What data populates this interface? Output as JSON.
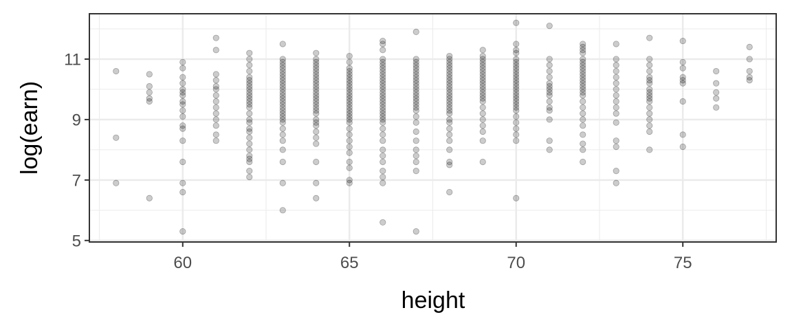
{
  "chart_data": {
    "type": "scatter",
    "xlabel": "height",
    "ylabel": "log(earn)",
    "xlim": [
      57.2,
      77.8
    ],
    "ylim": [
      4.95,
      12.5
    ],
    "x_ticks": [
      60,
      65,
      70,
      75
    ],
    "y_ticks": [
      5,
      7,
      9,
      11
    ],
    "x_tick_labels": [
      "60",
      "65",
      "70",
      "75"
    ],
    "y_tick_labels": [
      "5",
      "7",
      "9",
      "11"
    ],
    "grid": true,
    "legend": "none",
    "point_color": "#000000",
    "point_alpha": 0.2,
    "points": [
      [
        58,
        10.6
      ],
      [
        58,
        8.4
      ],
      [
        58,
        6.9
      ],
      [
        59,
        10.5
      ],
      [
        59,
        10.1
      ],
      [
        59,
        9.9
      ],
      [
        59,
        9.7
      ],
      [
        59,
        9.6
      ],
      [
        59,
        6.4
      ],
      [
        60,
        10.9
      ],
      [
        60,
        10.7
      ],
      [
        60,
        10.4
      ],
      [
        60,
        10.2
      ],
      [
        60,
        10.0
      ],
      [
        60,
        9.9
      ],
      [
        60,
        9.8
      ],
      [
        60,
        9.6
      ],
      [
        60,
        9.5
      ],
      [
        60,
        9.3
      ],
      [
        60,
        9.1
      ],
      [
        60,
        8.8
      ],
      [
        60,
        8.7
      ],
      [
        60,
        8.3
      ],
      [
        60,
        7.6
      ],
      [
        60,
        6.9
      ],
      [
        60,
        6.6
      ],
      [
        60,
        5.3
      ],
      [
        61,
        11.7
      ],
      [
        61,
        11.3
      ],
      [
        61,
        10.5
      ],
      [
        61,
        10.3
      ],
      [
        61,
        10.1
      ],
      [
        61,
        10.0
      ],
      [
        61,
        9.8
      ],
      [
        61,
        9.6
      ],
      [
        61,
        9.4
      ],
      [
        61,
        9.2
      ],
      [
        61,
        9.0
      ],
      [
        61,
        8.8
      ],
      [
        61,
        8.5
      ],
      [
        61,
        8.3
      ],
      [
        62,
        11.2
      ],
      [
        62,
        11.0
      ],
      [
        62,
        10.8
      ],
      [
        62,
        10.6
      ],
      [
        62,
        10.4
      ],
      [
        62,
        10.3
      ],
      [
        62,
        10.2
      ],
      [
        62,
        10.1
      ],
      [
        62,
        10.0
      ],
      [
        62,
        9.9
      ],
      [
        62,
        9.8
      ],
      [
        62,
        9.7
      ],
      [
        62,
        9.6
      ],
      [
        62,
        9.5
      ],
      [
        62,
        9.4
      ],
      [
        62,
        9.2
      ],
      [
        62,
        9.0
      ],
      [
        62,
        8.9
      ],
      [
        62,
        8.7
      ],
      [
        62,
        8.6
      ],
      [
        62,
        8.4
      ],
      [
        62,
        8.2
      ],
      [
        62,
        8.0
      ],
      [
        62,
        7.8
      ],
      [
        62,
        7.7
      ],
      [
        62,
        7.6
      ],
      [
        62,
        7.3
      ],
      [
        62,
        7.1
      ],
      [
        63,
        11.5
      ],
      [
        63,
        11.0
      ],
      [
        63,
        10.9
      ],
      [
        63,
        10.8
      ],
      [
        63,
        10.7
      ],
      [
        63,
        10.6
      ],
      [
        63,
        10.5
      ],
      [
        63,
        10.4
      ],
      [
        63,
        10.3
      ],
      [
        63,
        10.2
      ],
      [
        63,
        10.1
      ],
      [
        63,
        10.0
      ],
      [
        63,
        9.9
      ],
      [
        63,
        9.8
      ],
      [
        63,
        9.7
      ],
      [
        63,
        9.6
      ],
      [
        63,
        9.5
      ],
      [
        63,
        9.4
      ],
      [
        63,
        9.3
      ],
      [
        63,
        9.2
      ],
      [
        63,
        9.1
      ],
      [
        63,
        9.0
      ],
      [
        63,
        8.9
      ],
      [
        63,
        8.7
      ],
      [
        63,
        8.5
      ],
      [
        63,
        8.3
      ],
      [
        63,
        8.0
      ],
      [
        63,
        7.6
      ],
      [
        63,
        6.9
      ],
      [
        63,
        6.0
      ],
      [
        64,
        11.2
      ],
      [
        64,
        11.0
      ],
      [
        64,
        10.9
      ],
      [
        64,
        10.8
      ],
      [
        64,
        10.7
      ],
      [
        64,
        10.6
      ],
      [
        64,
        10.5
      ],
      [
        64,
        10.4
      ],
      [
        64,
        10.3
      ],
      [
        64,
        10.2
      ],
      [
        64,
        10.1
      ],
      [
        64,
        10.0
      ],
      [
        64,
        9.9
      ],
      [
        64,
        9.8
      ],
      [
        64,
        9.7
      ],
      [
        64,
        9.6
      ],
      [
        64,
        9.5
      ],
      [
        64,
        9.4
      ],
      [
        64,
        9.3
      ],
      [
        64,
        9.2
      ],
      [
        64,
        9.0
      ],
      [
        64,
        8.9
      ],
      [
        64,
        8.8
      ],
      [
        64,
        8.6
      ],
      [
        64,
        8.4
      ],
      [
        64,
        8.2
      ],
      [
        64,
        7.6
      ],
      [
        64,
        6.9
      ],
      [
        64,
        6.4
      ],
      [
        65,
        11.1
      ],
      [
        65,
        10.9
      ],
      [
        65,
        10.7
      ],
      [
        65,
        10.6
      ],
      [
        65,
        10.5
      ],
      [
        65,
        10.4
      ],
      [
        65,
        10.3
      ],
      [
        65,
        10.2
      ],
      [
        65,
        10.1
      ],
      [
        65,
        10.0
      ],
      [
        65,
        9.9
      ],
      [
        65,
        9.8
      ],
      [
        65,
        9.7
      ],
      [
        65,
        9.6
      ],
      [
        65,
        9.5
      ],
      [
        65,
        9.4
      ],
      [
        65,
        9.3
      ],
      [
        65,
        9.2
      ],
      [
        65,
        9.1
      ],
      [
        65,
        9.0
      ],
      [
        65,
        8.9
      ],
      [
        65,
        8.7
      ],
      [
        65,
        8.5
      ],
      [
        65,
        8.3
      ],
      [
        65,
        8.1
      ],
      [
        65,
        7.9
      ],
      [
        65,
        7.6
      ],
      [
        65,
        7.4
      ],
      [
        65,
        7.0
      ],
      [
        65,
        6.9
      ],
      [
        66,
        11.6
      ],
      [
        66,
        11.5
      ],
      [
        66,
        11.3
      ],
      [
        66,
        11.0
      ],
      [
        66,
        10.9
      ],
      [
        66,
        10.8
      ],
      [
        66,
        10.7
      ],
      [
        66,
        10.6
      ],
      [
        66,
        10.5
      ],
      [
        66,
        10.4
      ],
      [
        66,
        10.3
      ],
      [
        66,
        10.2
      ],
      [
        66,
        10.1
      ],
      [
        66,
        10.0
      ],
      [
        66,
        9.9
      ],
      [
        66,
        9.8
      ],
      [
        66,
        9.7
      ],
      [
        66,
        9.6
      ],
      [
        66,
        9.5
      ],
      [
        66,
        9.4
      ],
      [
        66,
        9.3
      ],
      [
        66,
        9.2
      ],
      [
        66,
        9.1
      ],
      [
        66,
        9.0
      ],
      [
        66,
        8.9
      ],
      [
        66,
        8.7
      ],
      [
        66,
        8.5
      ],
      [
        66,
        8.3
      ],
      [
        66,
        8.0
      ],
      [
        66,
        7.8
      ],
      [
        66,
        7.6
      ],
      [
        66,
        7.3
      ],
      [
        66,
        7.1
      ],
      [
        66,
        6.9
      ],
      [
        66,
        5.6
      ],
      [
        67,
        11.9
      ],
      [
        67,
        11.0
      ],
      [
        67,
        10.9
      ],
      [
        67,
        10.8
      ],
      [
        67,
        10.7
      ],
      [
        67,
        10.6
      ],
      [
        67,
        10.5
      ],
      [
        67,
        10.4
      ],
      [
        67,
        10.3
      ],
      [
        67,
        10.2
      ],
      [
        67,
        10.1
      ],
      [
        67,
        10.0
      ],
      [
        67,
        9.9
      ],
      [
        67,
        9.8
      ],
      [
        67,
        9.7
      ],
      [
        67,
        9.6
      ],
      [
        67,
        9.5
      ],
      [
        67,
        9.4
      ],
      [
        67,
        9.3
      ],
      [
        67,
        9.1
      ],
      [
        67,
        8.9
      ],
      [
        67,
        8.6
      ],
      [
        67,
        8.3
      ],
      [
        67,
        8.0
      ],
      [
        67,
        7.8
      ],
      [
        67,
        7.6
      ],
      [
        67,
        7.3
      ],
      [
        67,
        5.3
      ],
      [
        68,
        11.1
      ],
      [
        68,
        11.0
      ],
      [
        68,
        10.9
      ],
      [
        68,
        10.8
      ],
      [
        68,
        10.7
      ],
      [
        68,
        10.6
      ],
      [
        68,
        10.5
      ],
      [
        68,
        10.4
      ],
      [
        68,
        10.3
      ],
      [
        68,
        10.2
      ],
      [
        68,
        10.1
      ],
      [
        68,
        10.0
      ],
      [
        68,
        9.9
      ],
      [
        68,
        9.8
      ],
      [
        68,
        9.7
      ],
      [
        68,
        9.6
      ],
      [
        68,
        9.5
      ],
      [
        68,
        9.4
      ],
      [
        68,
        9.3
      ],
      [
        68,
        9.2
      ],
      [
        68,
        9.0
      ],
      [
        68,
        8.9
      ],
      [
        68,
        8.7
      ],
      [
        68,
        8.5
      ],
      [
        68,
        8.3
      ],
      [
        68,
        8.0
      ],
      [
        68,
        7.6
      ],
      [
        68,
        7.5
      ],
      [
        68,
        6.6
      ],
      [
        69,
        11.3
      ],
      [
        69,
        11.1
      ],
      [
        69,
        11.0
      ],
      [
        69,
        10.9
      ],
      [
        69,
        10.8
      ],
      [
        69,
        10.7
      ],
      [
        69,
        10.6
      ],
      [
        69,
        10.5
      ],
      [
        69,
        10.4
      ],
      [
        69,
        10.3
      ],
      [
        69,
        10.2
      ],
      [
        69,
        10.1
      ],
      [
        69,
        10.0
      ],
      [
        69,
        9.9
      ],
      [
        69,
        9.8
      ],
      [
        69,
        9.7
      ],
      [
        69,
        9.6
      ],
      [
        69,
        9.4
      ],
      [
        69,
        9.2
      ],
      [
        69,
        9.0
      ],
      [
        69,
        8.8
      ],
      [
        69,
        8.6
      ],
      [
        69,
        8.3
      ],
      [
        69,
        7.6
      ],
      [
        70,
        12.2
      ],
      [
        70,
        11.5
      ],
      [
        70,
        11.3
      ],
      [
        70,
        11.2
      ],
      [
        70,
        11.0
      ],
      [
        70,
        10.9
      ],
      [
        70,
        10.8
      ],
      [
        70,
        10.7
      ],
      [
        70,
        10.6
      ],
      [
        70,
        10.5
      ],
      [
        70,
        10.4
      ],
      [
        70,
        10.3
      ],
      [
        70,
        10.2
      ],
      [
        70,
        10.1
      ],
      [
        70,
        10.0
      ],
      [
        70,
        9.9
      ],
      [
        70,
        9.8
      ],
      [
        70,
        9.7
      ],
      [
        70,
        9.6
      ],
      [
        70,
        9.5
      ],
      [
        70,
        9.4
      ],
      [
        70,
        9.3
      ],
      [
        70,
        9.1
      ],
      [
        70,
        8.9
      ],
      [
        70,
        8.7
      ],
      [
        70,
        8.5
      ],
      [
        70,
        8.3
      ],
      [
        70,
        6.4
      ],
      [
        71,
        12.1
      ],
      [
        71,
        11.0
      ],
      [
        71,
        10.8
      ],
      [
        71,
        10.6
      ],
      [
        71,
        10.4
      ],
      [
        71,
        10.2
      ],
      [
        71,
        10.1
      ],
      [
        71,
        10.0
      ],
      [
        71,
        9.9
      ],
      [
        71,
        9.8
      ],
      [
        71,
        9.6
      ],
      [
        71,
        9.4
      ],
      [
        71,
        9.3
      ],
      [
        71,
        9.0
      ],
      [
        71,
        8.3
      ],
      [
        71,
        8.0
      ],
      [
        72,
        11.5
      ],
      [
        72,
        11.4
      ],
      [
        72,
        11.3
      ],
      [
        72,
        11.2
      ],
      [
        72,
        11.0
      ],
      [
        72,
        10.9
      ],
      [
        72,
        10.8
      ],
      [
        72,
        10.7
      ],
      [
        72,
        10.6
      ],
      [
        72,
        10.5
      ],
      [
        72,
        10.4
      ],
      [
        72,
        10.3
      ],
      [
        72,
        10.2
      ],
      [
        72,
        10.1
      ],
      [
        72,
        10.0
      ],
      [
        72,
        9.9
      ],
      [
        72,
        9.8
      ],
      [
        72,
        9.6
      ],
      [
        72,
        9.4
      ],
      [
        72,
        9.2
      ],
      [
        72,
        9.0
      ],
      [
        72,
        8.8
      ],
      [
        72,
        8.5
      ],
      [
        72,
        8.2
      ],
      [
        72,
        8.0
      ],
      [
        72,
        7.6
      ],
      [
        73,
        11.5
      ],
      [
        73,
        11.0
      ],
      [
        73,
        10.8
      ],
      [
        73,
        10.6
      ],
      [
        73,
        10.4
      ],
      [
        73,
        10.2
      ],
      [
        73,
        10.0
      ],
      [
        73,
        9.8
      ],
      [
        73,
        9.6
      ],
      [
        73,
        9.4
      ],
      [
        73,
        9.2
      ],
      [
        73,
        8.9
      ],
      [
        73,
        8.3
      ],
      [
        73,
        8.1
      ],
      [
        73,
        7.3
      ],
      [
        73,
        6.9
      ],
      [
        74,
        11.7
      ],
      [
        74,
        11.0
      ],
      [
        74,
        10.8
      ],
      [
        74,
        10.6
      ],
      [
        74,
        10.4
      ],
      [
        74,
        10.3
      ],
      [
        74,
        10.2
      ],
      [
        74,
        10.0
      ],
      [
        74,
        9.9
      ],
      [
        74,
        9.8
      ],
      [
        74,
        9.7
      ],
      [
        74,
        9.6
      ],
      [
        74,
        9.4
      ],
      [
        74,
        9.2
      ],
      [
        74,
        9.0
      ],
      [
        74,
        8.8
      ],
      [
        74,
        8.6
      ],
      [
        74,
        8.0
      ],
      [
        75,
        11.6
      ],
      [
        75,
        10.9
      ],
      [
        75,
        10.7
      ],
      [
        75,
        10.4
      ],
      [
        75,
        10.3
      ],
      [
        75,
        10.2
      ],
      [
        75,
        9.6
      ],
      [
        75,
        8.5
      ],
      [
        75,
        8.1
      ],
      [
        76,
        10.6
      ],
      [
        76,
        10.2
      ],
      [
        76,
        9.9
      ],
      [
        76,
        9.7
      ],
      [
        76,
        9.4
      ],
      [
        77,
        11.4
      ],
      [
        77,
        11.0
      ],
      [
        77,
        10.6
      ],
      [
        77,
        10.4
      ],
      [
        77,
        10.3
      ]
    ]
  }
}
